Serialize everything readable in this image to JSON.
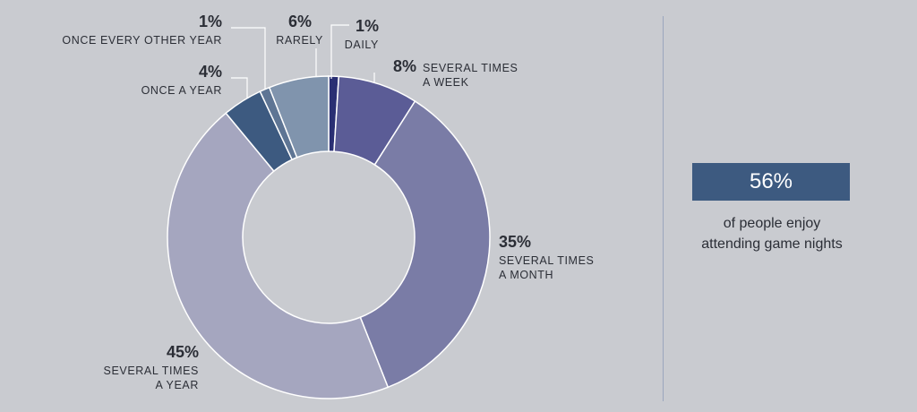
{
  "chart_data": {
    "type": "pie",
    "donut": true,
    "slices": [
      {
        "category": "DAILY",
        "value": 1,
        "label_pct": "1%",
        "label_lines": [
          "DAILY"
        ],
        "color": "#2a2f73"
      },
      {
        "category": "SEVERAL TIMES A WEEK",
        "value": 8,
        "label_pct": "8%",
        "label_lines": [
          "SEVERAL TIMES",
          "A WEEK"
        ],
        "color": "#5b5c96"
      },
      {
        "category": "SEVERAL TIMES A MONTH",
        "value": 35,
        "label_pct": "35%",
        "label_lines": [
          "SEVERAL TIMES",
          "A MONTH"
        ],
        "color": "#7a7ca6"
      },
      {
        "category": "SEVERAL TIMES A YEAR",
        "value": 45,
        "label_pct": "45%",
        "label_lines": [
          "SEVERAL TIMES",
          "A YEAR"
        ],
        "color": "#a5a6bf"
      },
      {
        "category": "ONCE A YEAR",
        "value": 4,
        "label_pct": "4%",
        "label_lines": [
          "ONCE A YEAR"
        ],
        "color": "#3d5a80"
      },
      {
        "category": "ONCE EVERY OTHER YEAR",
        "value": 1,
        "label_pct": "1%",
        "label_lines": [
          "ONCE EVERY OTHER YEAR"
        ],
        "color": "#5e7594"
      },
      {
        "category": "RARELY",
        "value": 6,
        "label_pct": "6%",
        "label_lines": [
          "RARELY"
        ],
        "color": "#8094ad"
      }
    ]
  },
  "stat": {
    "value": "56%",
    "caption_line1": "of people enjoy",
    "caption_line2": "attending game nights"
  }
}
